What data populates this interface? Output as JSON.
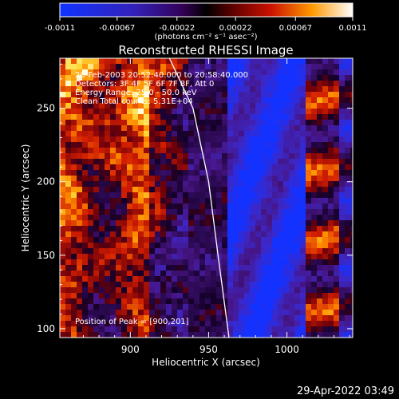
{
  "colorbar": {
    "ticks": [
      "-0.0011",
      "-0.00067",
      "-0.00022",
      "0.00022",
      "0.00067",
      "0.0011"
    ],
    "range": [
      -0.0011,
      0.0011
    ],
    "units_label": "(photons cm⁻² s⁻¹ asec⁻²)"
  },
  "chart_data": {
    "type": "heatmap",
    "title": "Reconstructed RHESSI Image",
    "xlabel": "Heliocentric X (arcsec)",
    "ylabel": "Heliocentric Y (arcsec)",
    "xlim": [
      855,
      1042
    ],
    "ylim": [
      94,
      284
    ],
    "xticks": [
      900,
      950,
      1000
    ],
    "yticks": [
      100,
      150,
      200,
      250
    ],
    "info_lines": [
      "20-Feb-2003 20:52:40.000 to 20:58:40.000",
      "Detectors: 3F 4F 5F 6F 7F 8F, Att 0",
      "Energy Range: 25.0 - 50.0 keV",
      "Clean    Total counts: 5.31E+04"
    ],
    "peak_text": "Position of Peak = [900,201]",
    "limb_curve": [
      [
        925,
        284
      ],
      [
        940,
        250
      ],
      [
        950,
        200
      ],
      [
        956,
        150
      ],
      [
        963,
        94
      ]
    ]
  },
  "footer": {
    "timestamp": "29-Apr-2022 03:49"
  }
}
